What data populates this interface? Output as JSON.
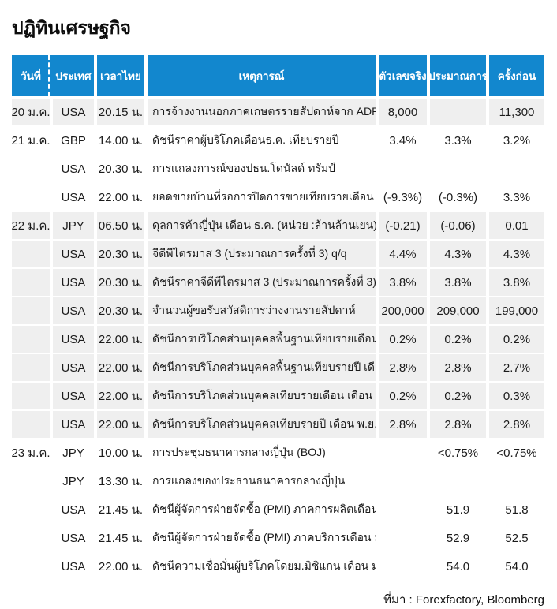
{
  "page_title": "ปฏิทินเศรษฐกิจ",
  "colors": {
    "header_bg": "#1287CE",
    "header_text": "#FFFFFF",
    "shaded_row_bg": "#EFEFEF",
    "body_text": "#1B1B1B"
  },
  "table": {
    "columns": [
      {
        "key": "date",
        "label": "วันที่"
      },
      {
        "key": "country",
        "label": "ประเทศ"
      },
      {
        "key": "time",
        "label": "เวลาไทย"
      },
      {
        "key": "event",
        "label": "เหตุการณ์"
      },
      {
        "key": "actual",
        "label": "ตัวเลขจริง"
      },
      {
        "key": "forecast",
        "label": "ประมาณการ"
      },
      {
        "key": "previous",
        "label": "ครั้งก่อน"
      }
    ],
    "rows": [
      {
        "date": "20 ม.ค.",
        "country": "USA",
        "time": "20.15 น.",
        "event": "การจ้างงานนอกภาคเกษตรรายสัปดาห์จาก ADP",
        "actual": "8,000",
        "forecast": "",
        "previous": "11,300",
        "shaded": true
      },
      {
        "date": "21 ม.ค.",
        "country": "GBP",
        "time": "14.00 น.",
        "event": "ดัชนีราคาผู้บริโภคเดือนธ.ค. เทียบรายปี",
        "actual": "3.4%",
        "forecast": "3.3%",
        "previous": "3.2%",
        "shaded": false
      },
      {
        "date": "",
        "country": "USA",
        "time": "20.30 น.",
        "event": "การแถลงการณ์ของปธน.โดนัลด์ ทรัมป์",
        "actual": "",
        "forecast": "",
        "previous": "",
        "shaded": false
      },
      {
        "date": "",
        "country": "USA",
        "time": "22.00 น.",
        "event": "ยอดขายบ้านที่รอการปิดการขายเทียบรายเดือน ธ.ค.",
        "actual": "(-9.3%)",
        "forecast": "(-0.3%)",
        "previous": "3.3%",
        "shaded": false
      },
      {
        "date": "22 ม.ค.",
        "country": "JPY",
        "time": "06.50 น.",
        "event": "ดุลการค้าญี่ปุ่น เดือน ธ.ค. (หน่วย :ล้านล้านเยน)",
        "actual": "(-0.21)",
        "forecast": "(-0.06)",
        "previous": "0.01",
        "shaded": true
      },
      {
        "date": "",
        "country": "USA",
        "time": "20.30 น.",
        "event": "จีดีพีไตรมาส 3 (ประมาณการครั้งที่ 3) q/q",
        "actual": "4.4%",
        "forecast": "4.3%",
        "previous": "4.3%",
        "shaded": true
      },
      {
        "date": "",
        "country": "USA",
        "time": "20.30 น.",
        "event": "ดัชนีราคาจีดีพีไตรมาส 3 (ประมาณการครั้งที่ 3) q/q",
        "actual": "3.8%",
        "forecast": "3.8%",
        "previous": "3.8%",
        "shaded": true
      },
      {
        "date": "",
        "country": "USA",
        "time": "20.30 น.",
        "event": "จำนวนผู้ขอรับสวัสดิการว่างงานรายสัปดาห์",
        "actual": "200,000",
        "forecast": "209,000",
        "previous": "199,000",
        "shaded": true
      },
      {
        "date": "",
        "country": "USA",
        "time": "22.00 น.",
        "event": "ดัชนีการบริโภคส่วนบุคคลพื้นฐานเทียบรายเดือน เดือน พ.ย.",
        "actual": "0.2%",
        "forecast": "0.2%",
        "previous": "0.2%",
        "shaded": true
      },
      {
        "date": "",
        "country": "USA",
        "time": "22.00 น.",
        "event": "ดัชนีการบริโภคส่วนบุคคลพื้นฐานเทียบรายปี เดือน พ.ย.",
        "actual": "2.8%",
        "forecast": "2.8%",
        "previous": "2.7%",
        "shaded": true
      },
      {
        "date": "",
        "country": "USA",
        "time": "22.00 น.",
        "event": "ดัชนีการบริโภคส่วนบุคคลเทียบรายเดือน เดือน พ.ย.",
        "actual": "0.2%",
        "forecast": "0.2%",
        "previous": "0.3%",
        "shaded": true
      },
      {
        "date": "",
        "country": "USA",
        "time": "22.00 น.",
        "event": "ดัชนีการบริโภคส่วนบุคคลเทียบรายปี เดือน พ.ย.",
        "actual": "2.8%",
        "forecast": "2.8%",
        "previous": "2.8%",
        "shaded": true
      },
      {
        "date": "23 ม.ค.",
        "country": "JPY",
        "time": "10.00 น.",
        "event": "การประชุมธนาคารกลางญี่ปุ่น (BOJ)",
        "actual": "",
        "forecast": "<0.75%",
        "previous": "<0.75%",
        "shaded": false
      },
      {
        "date": "",
        "country": "JPY",
        "time": "13.30 น.",
        "event": "การแถลงของประธานธนาคารกลางญี่ปุ่น",
        "actual": "",
        "forecast": "",
        "previous": "",
        "shaded": false
      },
      {
        "date": "",
        "country": "USA",
        "time": "21.45 น.",
        "event": "ดัชนีผู้จัดการฝ่ายจัดซื้อ (PMI) ภาคการผลิตเดือน ม.ค.",
        "actual": "",
        "forecast": "51.9",
        "previous": "51.8",
        "shaded": false
      },
      {
        "date": "",
        "country": "USA",
        "time": "21.45 น.",
        "event": "ดัชนีผู้จัดการฝ่ายจัดซื้อ (PMI) ภาคบริการเดือน ม.ค.",
        "actual": "",
        "forecast": "52.9",
        "previous": "52.5",
        "shaded": false
      },
      {
        "date": "",
        "country": "USA",
        "time": "22.00 น.",
        "event": "ดัชนีความเชื่อมั่นผู้บริโภคโดยม.มิชิแกน เดือน ม.ค.",
        "actual": "",
        "forecast": "54.0",
        "previous": "54.0",
        "shaded": false
      }
    ]
  },
  "footer": {
    "source": "ที่มา : Forexfactory, Bloomberg"
  }
}
